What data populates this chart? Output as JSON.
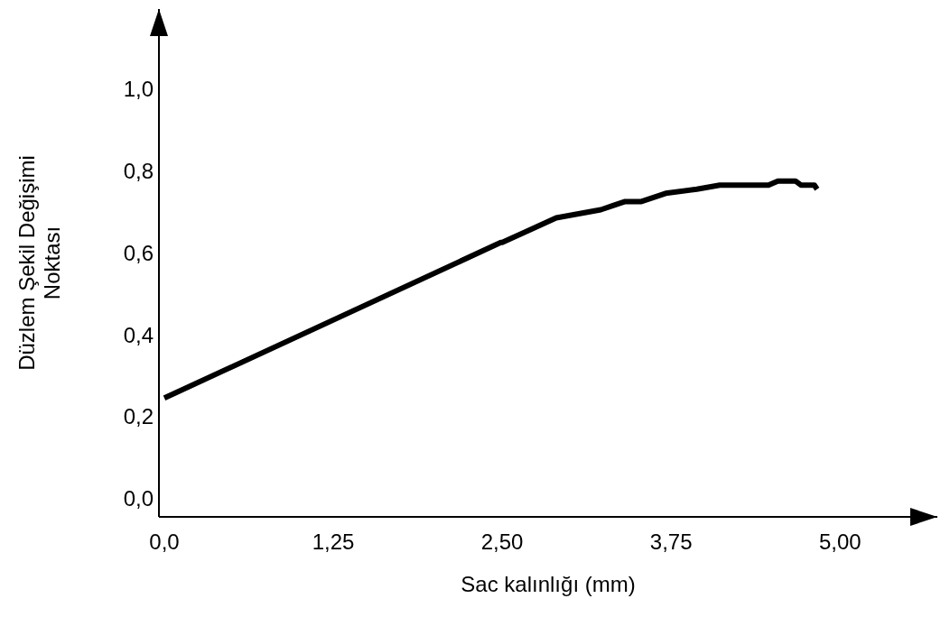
{
  "chart_data": {
    "type": "line",
    "xlabel": "Sac kalınlığı (mm)",
    "ylabel": "Düzlem Şekil Değişimi Noktası",
    "color": "#000000",
    "x": [
      0,
      2.49,
      2.5,
      2.9,
      3.23,
      3.32,
      3.41,
      3.53,
      3.71,
      3.94,
      4.11,
      4.47,
      4.54,
      4.67,
      4.71,
      4.81,
      4.83
    ],
    "values": [
      0.25,
      0.63,
      0.63,
      0.69,
      0.71,
      0.72,
      0.73,
      0.73,
      0.75,
      0.76,
      0.77,
      0.77,
      0.78,
      0.78,
      0.77,
      0.77,
      0.76
    ],
    "xlim": [
      -0.04,
      5.72
    ],
    "ylim": [
      -0.04,
      1.2
    ],
    "xticks": [
      {
        "value": 0,
        "label": "0,0"
      },
      {
        "value": 1.25,
        "label": "1,25"
      },
      {
        "value": 2.5,
        "label": "2,50"
      },
      {
        "value": 3.75,
        "label": "3,75"
      },
      {
        "value": 5,
        "label": "5,00"
      }
    ],
    "yticks": [
      {
        "value": 0,
        "label": "0,0"
      },
      {
        "value": 0.2,
        "label": "0,2"
      },
      {
        "value": 0.4,
        "label": "0,4"
      },
      {
        "value": 0.6,
        "label": "0,6"
      },
      {
        "value": 0.8,
        "label": "0,8"
      },
      {
        "value": 1,
        "label": "1,0"
      }
    ],
    "grid": false,
    "marker": "none",
    "line_style": "solid"
  }
}
